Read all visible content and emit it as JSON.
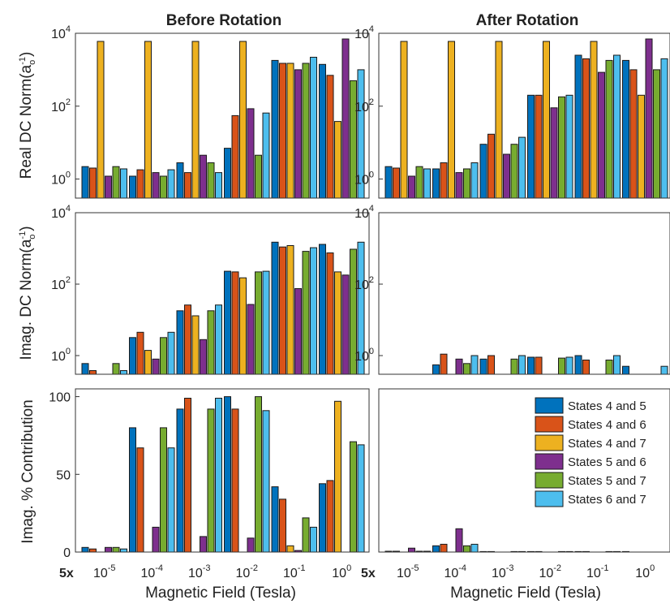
{
  "titles": {
    "left": "Before Rotation",
    "right": "After Rotation"
  },
  "ylabels": {
    "row1": "Real DC Norm(a_o^-1)",
    "row2": "Imag. DC Norm(a_o^-1)",
    "row3": "Imag. % Contribution"
  },
  "xlabel": "Magnetic Field (Tesla)",
  "x_prefix": "5x",
  "colors": [
    "#0072BD",
    "#D95319",
    "#EDB120",
    "#7E2F8E",
    "#77AC30",
    "#4DBEEE"
  ],
  "chart_data": {
    "type": "bar",
    "categories": [
      "10^-5",
      "10^-4",
      "10^-3",
      "10^-2",
      "10^-1",
      "10^0"
    ],
    "series_names": [
      "States 4 and 5",
      "States 4 and 6",
      "States 4 and 7",
      "States 5 and 6",
      "States 5 and 7",
      "States 6 and 7"
    ],
    "legend_position": "top-right of bottom-right panel",
    "panels": [
      {
        "id": "real_before",
        "yscale": "log",
        "ylim": [
          0.3,
          10000
        ],
        "yticks": [
          1,
          100,
          10000
        ],
        "ytick_labels": [
          "10^0",
          "10^2",
          "10^4"
        ],
        "values": [
          [
            2.2,
            2.0,
            6000,
            1.2,
            2.2,
            1.9
          ],
          [
            1.2,
            1.8,
            6000,
            1.5,
            1.2,
            1.8
          ],
          [
            2.8,
            1.5,
            6000,
            4.5,
            2.8,
            1.5
          ],
          [
            7,
            55,
            6000,
            85,
            4.5,
            65
          ],
          [
            1800,
            1500,
            1500,
            1000,
            1500,
            2200
          ],
          [
            1400,
            700,
            38,
            7000,
            500,
            1000
          ]
        ]
      },
      {
        "id": "real_after",
        "yscale": "log",
        "ylim": [
          0.3,
          10000
        ],
        "yticks": [
          1,
          100,
          10000
        ],
        "ytick_labels": [
          "10^0",
          "10^2",
          "10^4"
        ],
        "values": [
          [
            2.2,
            2.0,
            6000,
            1.2,
            2.2,
            1.9
          ],
          [
            1.9,
            2.8,
            6000,
            1.5,
            1.9,
            2.8
          ],
          [
            9,
            17,
            6000,
            4.8,
            9,
            14
          ],
          [
            200,
            200,
            6000,
            90,
            180,
            200
          ],
          [
            2500,
            2000,
            6000,
            850,
            1800,
            2500
          ],
          [
            1800,
            1000,
            200,
            7000,
            1000,
            2000
          ]
        ]
      },
      {
        "id": "imag_before",
        "yscale": "log",
        "ylim": [
          0.3,
          10000
        ],
        "yticks": [
          1,
          100,
          10000
        ],
        "ytick_labels": [
          "10^0",
          "10^2",
          "10^4"
        ],
        "values": [
          [
            0.6,
            0.38,
            null,
            null,
            0.6,
            0.38
          ],
          [
            3.2,
            4.5,
            1.4,
            0.8,
            3.2,
            4.5
          ],
          [
            18,
            26,
            13,
            2.8,
            18,
            26
          ],
          [
            230,
            220,
            150,
            27,
            220,
            230
          ],
          [
            1500,
            1100,
            1200,
            75,
            830,
            1050
          ],
          [
            1300,
            750,
            220,
            180,
            950,
            1500
          ]
        ]
      },
      {
        "id": "imag_after",
        "yscale": "log",
        "ylim": [
          0.3,
          10000
        ],
        "yticks": [
          1,
          100,
          10000
        ],
        "ytick_labels": [
          "10^0",
          "10^2",
          "10^4"
        ],
        "values": [
          [
            null,
            null,
            null,
            null,
            null,
            null
          ],
          [
            0.55,
            1.1,
            null,
            0.8,
            0.6,
            1.0
          ],
          [
            0.8,
            1.0,
            null,
            null,
            0.8,
            1.0
          ],
          [
            0.9,
            0.9,
            null,
            null,
            0.85,
            0.9
          ],
          [
            1.0,
            0.75,
            null,
            null,
            0.75,
            1.0
          ],
          [
            0.5,
            null,
            null,
            null,
            null,
            0.5
          ]
        ]
      },
      {
        "id": "pct_before",
        "yscale": "linear",
        "ylim": [
          0,
          105
        ],
        "yticks": [
          0,
          50,
          100
        ],
        "ytick_labels": [
          "0",
          "50",
          "100"
        ],
        "values": [
          [
            3,
            2,
            0,
            3,
            3,
            2
          ],
          [
            80,
            67,
            0,
            16,
            80,
            67
          ],
          [
            92,
            99,
            0,
            10,
            92,
            99
          ],
          [
            100,
            92,
            0,
            9,
            100,
            91
          ],
          [
            42,
            34,
            4,
            1,
            22,
            16
          ],
          [
            44,
            46,
            97,
            0,
            71,
            69
          ]
        ]
      },
      {
        "id": "pct_after",
        "yscale": "linear",
        "ylim": [
          0,
          105
        ],
        "yticks": [],
        "ytick_labels": [],
        "values": [
          [
            0.5,
            0.5,
            0,
            2.5,
            0.5,
            0.5
          ],
          [
            4,
            5,
            0,
            15,
            4,
            5
          ],
          [
            0.3,
            0.3,
            0,
            0,
            0.3,
            0.3
          ],
          [
            0.3,
            0.3,
            0,
            0,
            0.3,
            0.3
          ],
          [
            0.3,
            0.3,
            0,
            0,
            0.3,
            0.3
          ],
          [
            0.3,
            0,
            0,
            0,
            0,
            0
          ]
        ]
      }
    ]
  }
}
